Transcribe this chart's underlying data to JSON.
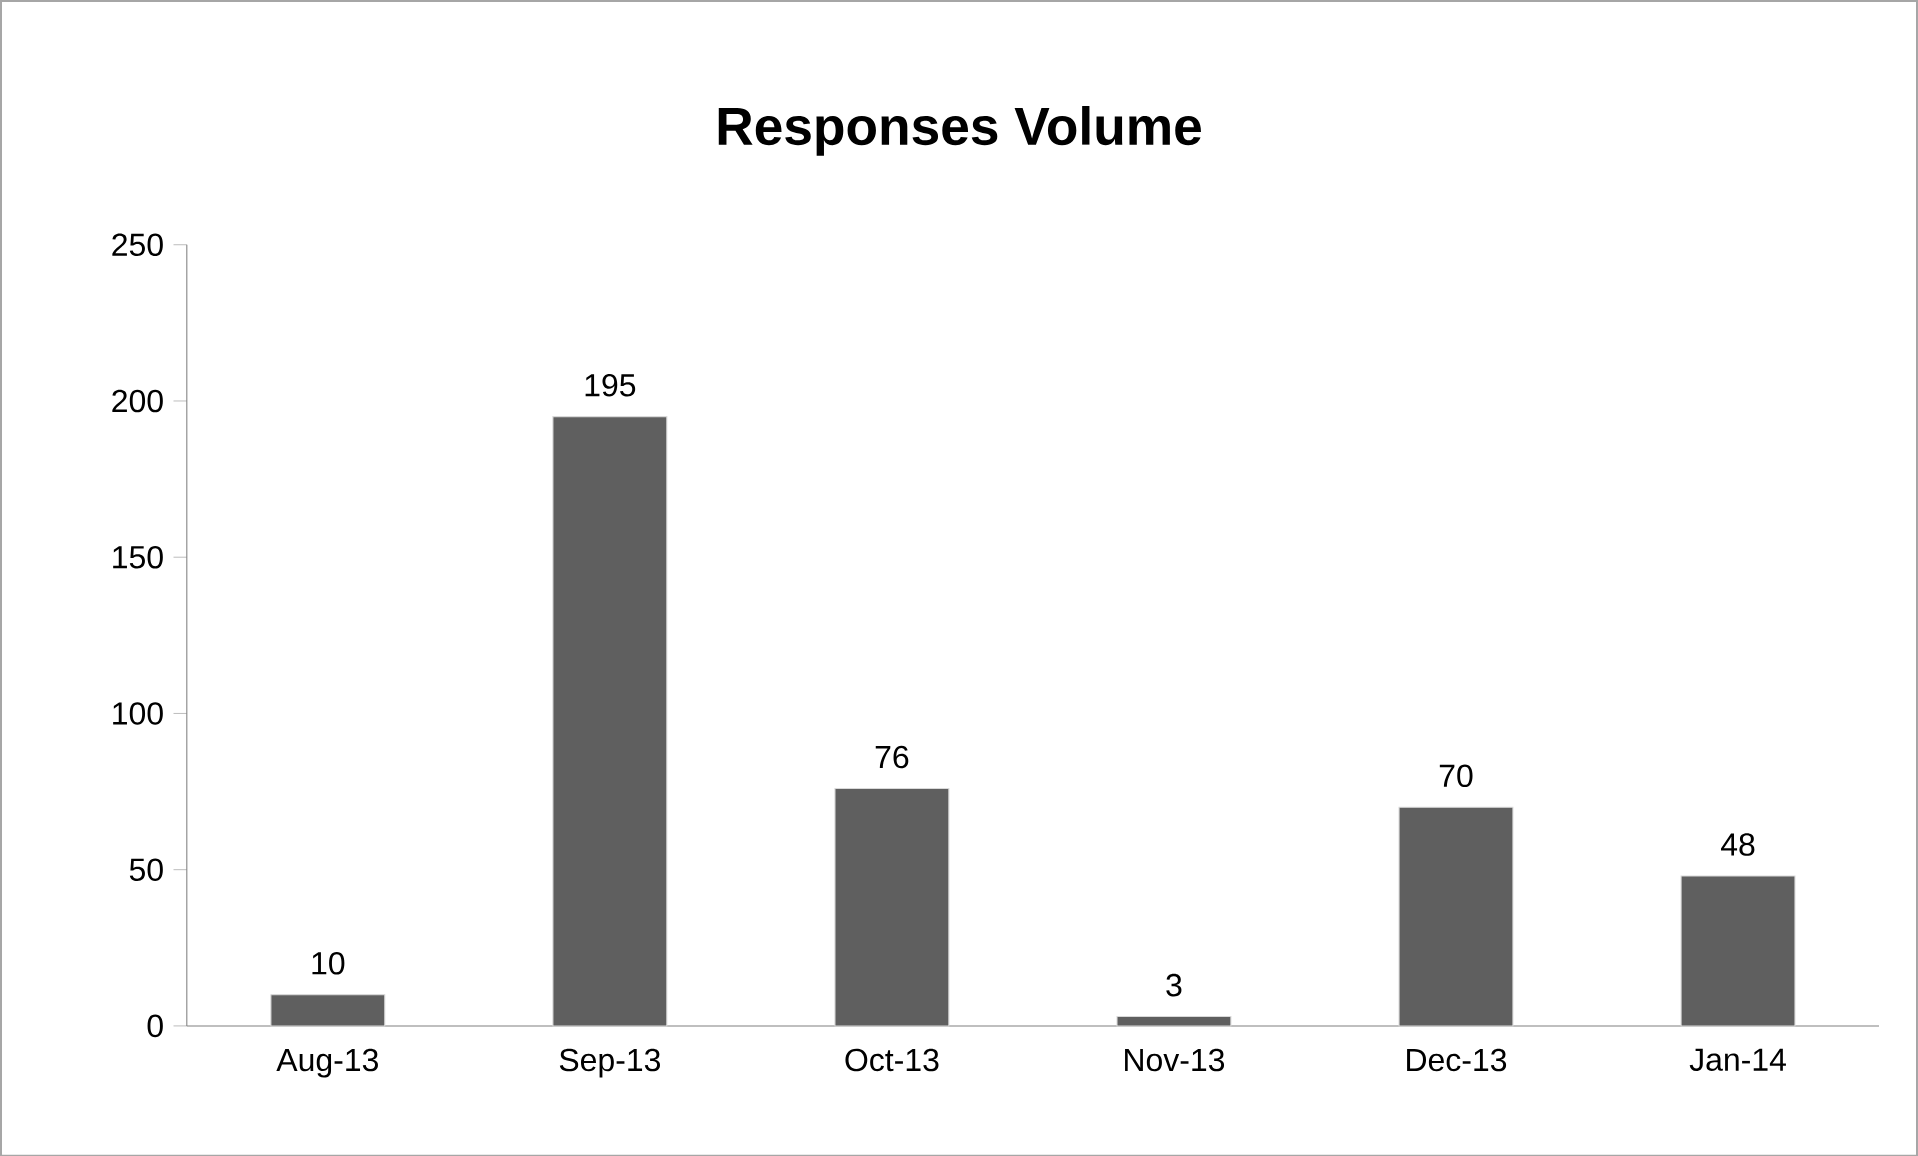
{
  "chart_data": {
    "type": "bar",
    "title": "Responses Volume",
    "categories": [
      "Aug-13",
      "Sep-13",
      "Oct-13",
      "Nov-13",
      "Dec-13",
      "Jan-14"
    ],
    "values": [
      10,
      195,
      76,
      3,
      70,
      48
    ],
    "color": "#5f5f5f",
    "ylim": [
      0,
      250
    ],
    "yticks": [
      0,
      50,
      100,
      150,
      200,
      250
    ],
    "grid": false,
    "data_labels": true
  }
}
